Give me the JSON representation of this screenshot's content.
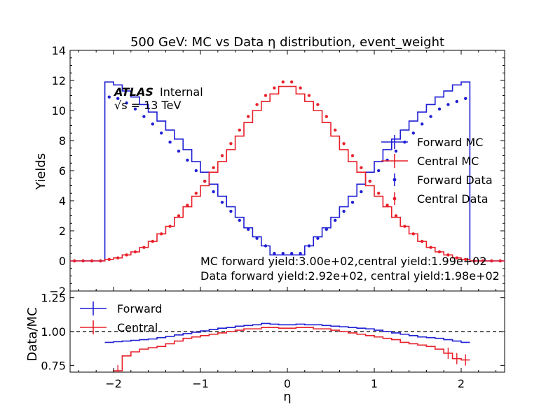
{
  "chart_data": [
    {
      "type": "line",
      "title": "500 GeV: MC vs Data η distribution, event_weight",
      "xlabel": "η",
      "ylabel": "Yields",
      "xlim": [
        -2.5,
        2.5
      ],
      "ylim": [
        -2,
        14
      ],
      "xticks": [
        "−2",
        "−1",
        "0",
        "1",
        "2"
      ],
      "yticks": [
        "−2",
        "0",
        "2",
        "4",
        "6",
        "8",
        "10",
        "12",
        "14"
      ],
      "bin_edges": [
        -2.5,
        -2.4,
        -2.3,
        -2.2,
        -2.1,
        -2.0,
        -1.9,
        -1.8,
        -1.7,
        -1.6,
        -1.5,
        -1.4,
        -1.3,
        -1.2,
        -1.1,
        -1.0,
        -0.9,
        -0.8,
        -0.7,
        -0.6,
        -0.5,
        -0.4,
        -0.3,
        -0.2,
        -0.1,
        0.0,
        0.1,
        0.2,
        0.3,
        0.4,
        0.5,
        0.6,
        0.7,
        0.8,
        0.9,
        1.0,
        1.1,
        1.2,
        1.3,
        1.4,
        1.5,
        1.6,
        1.7,
        1.8,
        1.9,
        2.0,
        2.1,
        2.2,
        2.3,
        2.4,
        2.5
      ],
      "series": [
        {
          "name": "Forward MC",
          "kind": "step",
          "color": "#1f1fd4",
          "values": [
            0,
            0,
            0,
            0,
            11.9,
            11.7,
            11.3,
            10.9,
            10.4,
            9.9,
            9.3,
            8.7,
            8.1,
            7.4,
            6.6,
            5.9,
            5.1,
            4.3,
            3.6,
            2.9,
            2.2,
            1.6,
            1.0,
            0.4,
            0.4,
            0.4,
            0.4,
            1.0,
            1.6,
            2.2,
            2.9,
            3.6,
            4.3,
            5.1,
            5.9,
            6.6,
            7.4,
            8.1,
            8.7,
            9.3,
            9.9,
            10.4,
            10.9,
            11.3,
            11.7,
            11.9,
            0,
            0,
            0,
            0
          ]
        },
        {
          "name": "Central MC",
          "kind": "step",
          "color": "#e8202a",
          "values": [
            0,
            0,
            0,
            0,
            0.1,
            0.2,
            0.4,
            0.6,
            0.9,
            1.3,
            1.8,
            2.3,
            2.9,
            3.6,
            4.3,
            5.0,
            5.9,
            6.6,
            7.4,
            8.3,
            9.2,
            10.0,
            10.6,
            11.1,
            11.6,
            11.6,
            11.1,
            10.6,
            10.0,
            9.2,
            8.3,
            7.4,
            6.6,
            5.9,
            5.0,
            4.3,
            3.6,
            2.9,
            2.3,
            1.8,
            1.3,
            0.9,
            0.6,
            0.4,
            0.2,
            0.1,
            0,
            0,
            0,
            0
          ]
        },
        {
          "name": "Forward Data",
          "kind": "points",
          "color": "#1f1fd4",
          "values": [
            0,
            0,
            0,
            0,
            10.9,
            10.8,
            10.5,
            10.1,
            9.6,
            9.1,
            8.5,
            7.9,
            7.3,
            6.7,
            6.0,
            5.3,
            4.6,
            3.9,
            3.3,
            2.7,
            2.1,
            1.5,
            1.0,
            0.5,
            0.5,
            0.5,
            0.5,
            1.0,
            1.5,
            2.1,
            2.7,
            3.3,
            3.9,
            4.6,
            5.3,
            6.0,
            6.7,
            7.3,
            7.9,
            8.5,
            9.1,
            9.6,
            10.1,
            10.4,
            10.6,
            10.8,
            0,
            0,
            0,
            0
          ]
        },
        {
          "name": "Central Data",
          "kind": "points",
          "color": "#e8202a",
          "values": [
            0,
            0,
            0,
            0,
            0.1,
            0.2,
            0.4,
            0.6,
            0.9,
            1.3,
            1.8,
            2.3,
            3.0,
            3.7,
            4.5,
            5.3,
            6.2,
            7.0,
            7.8,
            8.7,
            9.6,
            10.4,
            11.0,
            11.5,
            11.9,
            11.9,
            11.5,
            11.0,
            10.4,
            9.6,
            8.7,
            7.8,
            7.0,
            6.2,
            5.3,
            4.5,
            3.7,
            3.0,
            2.3,
            1.8,
            1.3,
            0.9,
            0.6,
            0.4,
            0.2,
            0.1,
            0,
            0,
            0,
            0
          ]
        }
      ],
      "legend": [
        "Forward MC",
        "Central MC",
        "Forward Data",
        "Central Data"
      ],
      "legend_position": "right",
      "annotations": {
        "atlas": "ATLAS",
        "internal": "Internal",
        "energy": "√s = 13 TeV",
        "mc_yield": "MC forward yield:3.00e+02,central yield:1.99e+02",
        "data_yield": "Data forward yield:2.92e+02, central yield:1.98e+02"
      }
    },
    {
      "type": "line",
      "xlabel": "η",
      "ylabel": "Data/MC",
      "xlim": [
        -2.5,
        2.5
      ],
      "ylim": [
        0.7,
        1.3
      ],
      "yticks": [
        "0.75",
        "1.00",
        "1.25"
      ],
      "reference_line": 1.0,
      "series": [
        {
          "name": "Forward",
          "color": "#1f1fd4",
          "values": [
            null,
            null,
            null,
            null,
            0.92,
            0.925,
            0.93,
            0.935,
            0.94,
            0.945,
            0.955,
            0.965,
            0.975,
            0.985,
            0.995,
            1.005,
            1.015,
            1.025,
            1.03,
            1.04,
            1.045,
            1.05,
            1.06,
            1.055,
            1.05,
            1.05,
            1.055,
            1.05,
            1.05,
            1.045,
            1.04,
            1.035,
            1.03,
            1.025,
            1.02,
            1.01,
            1.0,
            0.99,
            0.98,
            0.97,
            0.96,
            0.955,
            0.95,
            0.94,
            0.93,
            0.92,
            null,
            null,
            null,
            null
          ]
        },
        {
          "name": "Central",
          "color": "#e8202a",
          "values": [
            null,
            null,
            null,
            null,
            0.65,
            0.71,
            0.82,
            0.85,
            0.87,
            0.88,
            0.89,
            0.91,
            0.93,
            0.95,
            0.96,
            0.97,
            0.98,
            0.99,
            1.0,
            1.01,
            1.02,
            1.02,
            1.03,
            1.03,
            1.025,
            1.025,
            1.03,
            1.03,
            1.02,
            1.02,
            1.01,
            1.0,
            0.99,
            0.98,
            0.97,
            0.96,
            0.95,
            0.94,
            0.92,
            0.91,
            0.9,
            0.89,
            0.87,
            0.84,
            0.8,
            0.79,
            null,
            null,
            null,
            null
          ]
        }
      ],
      "legend": [
        "Forward",
        "Central"
      ],
      "legend_position": "top-left"
    }
  ]
}
